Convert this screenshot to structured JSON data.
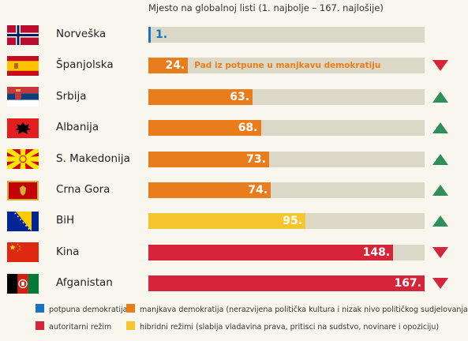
{
  "chart_data": {
    "type": "bar",
    "subtitle": "Mjesto na globalnoj listi (1. najbolje – 167. najlošije)",
    "xlim": [
      0,
      167
    ],
    "categories": [
      "Norveška",
      "Španjolska",
      "Srbija",
      "Albanija",
      "S. Makedonija",
      "Crna Gora",
      "BiH",
      "Kina",
      "Afganistan"
    ],
    "flags": [
      "norway-flag-icon",
      "spain-flag-icon",
      "serbia-flag-icon",
      "albania-flag-icon",
      "north-macedonia-flag-icon",
      "montenegro-flag-icon",
      "bosnia-flag-icon",
      "china-flag-icon",
      "afghanistan-flag-icon"
    ],
    "values": [
      1,
      24,
      63,
      68,
      73,
      74,
      95,
      148,
      167
    ],
    "rank_labels": [
      "1.",
      "24.",
      "63.",
      "68.",
      "73.",
      "74.",
      "95.",
      "148.",
      "167."
    ],
    "regime": [
      "full",
      "flawed",
      "flawed",
      "flawed",
      "flawed",
      "flawed",
      "hybrid",
      "authoritarian",
      "authoritarian"
    ],
    "trend": [
      "",
      "down",
      "up",
      "up",
      "up",
      "up",
      "up",
      "down",
      "down"
    ],
    "annotations": [
      {
        "category": "Španjolska",
        "text": "Pad iz potpune u manjkavu demokratiju"
      }
    ],
    "legend": [
      {
        "key": "full",
        "label": "potpuna demokratija"
      },
      {
        "key": "flawed",
        "label": "manjkava demokratija (nerazvijena politička kultura i nizak nivo političkog sudjelovanja)"
      },
      {
        "key": "authoritarian",
        "label": "autoritarni režim"
      },
      {
        "key": "hybrid",
        "label": "hibridni režimi (slabija vladavina prava, pritisci na sudstvo, novinare i opoziciju)"
      }
    ],
    "colors": {
      "full": "#1a73c0",
      "flawed": "#ea7d1b",
      "hybrid": "#f7c62f",
      "authoritarian": "#d6243a",
      "track": "#dcd8c8",
      "trend_up": "#2f8f5b",
      "trend_down": "#d6243a"
    }
  }
}
